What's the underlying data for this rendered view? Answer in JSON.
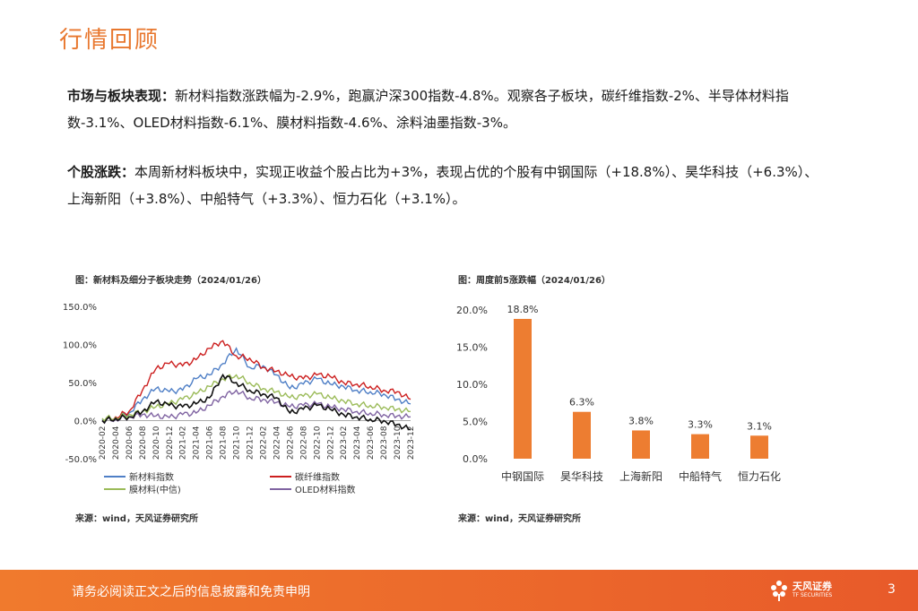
{
  "header": {
    "title": "行情回顾"
  },
  "paragraphs": {
    "market": {
      "label": "市场与板块表现：",
      "text": "新材料指数涨跌幅为-2.9%，跑赢沪深300指数-4.8%。观察各子板块，碳纤维指数-2%、半导体材料指数-3.1%、OLED材料指数-6.1%、膜材料指数-4.6%、涂料油墨指数-3%。"
    },
    "stocks": {
      "label": "个股涨跌：",
      "text": "本周新材料板块中，实现正收益个股占比为+3%，表现占优的个股有中钢国际（+18.8%）、昊华科技（+6.3%）、上海新阳（+3.8%）、中船特气（+3.3%）、恒力石化（+3.1%）。"
    }
  },
  "charts": {
    "left": {
      "caption": "图：新材料及细分子板块走势（2024/01/26）",
      "source": "来源：wind，天风证券研究所"
    },
    "right": {
      "caption": "图：周度前5涨跌幅（2024/01/26）",
      "source": "来源：wind，天风证券研究所"
    }
  },
  "chart_data": [
    {
      "type": "line",
      "title": "",
      "ylabel": "",
      "ylim": [
        -50,
        150
      ],
      "yticks": [
        "150.0%",
        "100.0%",
        "50.0%",
        "0.0%",
        "-50.0%"
      ],
      "xticks": [
        "2020-02",
        "2020-04",
        "2020-06",
        "2020-08",
        "2020-10",
        "2020-12",
        "2021-02",
        "2021-04",
        "2021-06",
        "2021-08",
        "2021-10",
        "2021-12",
        "2022-02",
        "2022-04",
        "2022-06",
        "2022-08",
        "2022-10",
        "2022-12",
        "2023-02",
        "2023-04",
        "2023-06",
        "2023-08",
        "2023-10",
        "2023-12"
      ],
      "legend": [
        {
          "name": "新材料指数",
          "color": "#4f7fc6"
        },
        {
          "name": "碳纤维指数",
          "color": "#cc1f1f"
        },
        {
          "name": "膜材料(中信)",
          "color": "#9bbb59"
        },
        {
          "name": "OLED材料指数",
          "color": "#8064a2"
        }
      ],
      "series": [
        {
          "name": "新材料指数",
          "color": "#4f7fc6",
          "x": [
            0,
            1,
            2,
            3,
            4,
            5,
            6,
            7,
            8,
            9,
            10,
            11,
            12,
            13,
            14,
            15,
            16,
            17,
            18,
            19,
            20,
            21,
            22,
            23
          ],
          "values": [
            2,
            3,
            10,
            28,
            42,
            38,
            40,
            55,
            60,
            75,
            95,
            70,
            72,
            60,
            42,
            48,
            55,
            48,
            45,
            40,
            38,
            35,
            28,
            22
          ]
        },
        {
          "name": "碳纤维指数",
          "color": "#cc1f1f",
          "x": [
            0,
            1,
            2,
            3,
            4,
            5,
            6,
            7,
            8,
            9,
            10,
            11,
            12,
            13,
            14,
            15,
            16,
            17,
            18,
            19,
            20,
            21,
            22,
            23
          ],
          "values": [
            0,
            5,
            12,
            40,
            68,
            75,
            72,
            80,
            95,
            105,
            85,
            82,
            70,
            65,
            58,
            55,
            60,
            58,
            50,
            48,
            45,
            40,
            38,
            28
          ]
        },
        {
          "name": "膜材料(中信)",
          "color": "#9bbb59",
          "x": [
            0,
            1,
            2,
            3,
            4,
            5,
            6,
            7,
            8,
            9,
            10,
            11,
            12,
            13,
            14,
            15,
            16,
            17,
            18,
            19,
            20,
            21,
            22,
            23
          ],
          "values": [
            3,
            4,
            8,
            12,
            18,
            22,
            28,
            35,
            45,
            55,
            60,
            50,
            42,
            38,
            30,
            32,
            35,
            30,
            26,
            22,
            20,
            18,
            15,
            12
          ]
        },
        {
          "name": "OLED材料指数",
          "color": "#8064a2",
          "x": [
            0,
            1,
            2,
            3,
            4,
            5,
            6,
            7,
            8,
            9,
            10,
            11,
            12,
            13,
            14,
            15,
            16,
            17,
            18,
            19,
            20,
            21,
            22,
            23
          ],
          "values": [
            0,
            2,
            5,
            8,
            6,
            4,
            8,
            10,
            20,
            32,
            40,
            30,
            28,
            24,
            18,
            20,
            22,
            18,
            15,
            12,
            10,
            8,
            6,
            5
          ]
        },
        {
          "name": "黑线",
          "color": "#111111",
          "x": [
            0,
            1,
            2,
            3,
            4,
            5,
            6,
            7,
            8,
            9,
            10,
            11,
            12,
            13,
            14,
            15,
            16,
            17,
            18,
            19,
            20,
            21,
            22,
            23
          ],
          "values": [
            0,
            3,
            5,
            12,
            25,
            20,
            18,
            22,
            30,
            60,
            50,
            40,
            35,
            30,
            10,
            15,
            20,
            15,
            8,
            5,
            2,
            0,
            -5,
            -12
          ]
        }
      ]
    },
    {
      "type": "bar",
      "title": "",
      "categories": [
        "中钢国际",
        "昊华科技",
        "上海新阳",
        "中船特气",
        "恒力石化"
      ],
      "values": [
        18.8,
        6.3,
        3.8,
        3.3,
        3.1
      ],
      "labels": [
        "18.8%",
        "6.3%",
        "3.8%",
        "3.3%",
        "3.1%"
      ],
      "ylim": [
        0,
        20
      ],
      "yticks": [
        "20.0%",
        "15.0%",
        "10.0%",
        "5.0%",
        "0.0%"
      ],
      "color": "#ed7d31"
    }
  ],
  "footer": {
    "disclaimer": "请务必阅读正文之后的信息披露和免责申明",
    "logo_text": "天风证券",
    "logo_sub": "TF SECURITIES",
    "page_number": "3"
  }
}
